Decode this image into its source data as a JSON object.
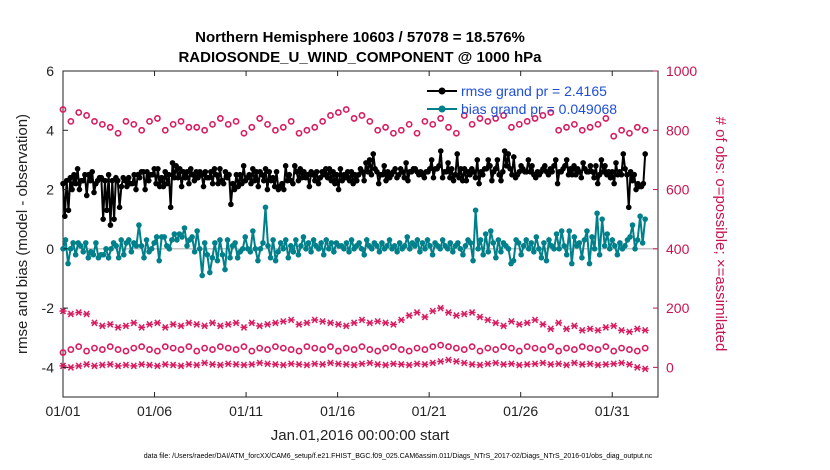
{
  "chart_data": {
    "type": "line",
    "title": "Northern Hemisphere 10603 / 57078 = 18.576%",
    "subtitle": "RADIOSONDE_U_WIND_COMPONENT @ 1000 hPa",
    "xlabel": "Jan.01,2016 00:00:00 start",
    "ylabel": "rmse and bias (model - observation)",
    "y2label": "# of obs: o=possible; ×=assimilated",
    "footer": "data file: /Users/raeder/DAI/ATM_forcXX/CAM6_setup/f.e21.FHIST_BGC.f09_025.CAM6assim.011/Diags_NTrS_2017-02/Diags_NTrS_2016-01/obs_diag_output.nc",
    "xlim": [
      0,
      32.5
    ],
    "ylim": [
      -5,
      6
    ],
    "y2lim": [
      -100,
      1000
    ],
    "xticks": [
      0,
      5,
      10,
      15,
      20,
      25,
      30
    ],
    "xticklabels": [
      "01/01",
      "01/06",
      "01/11",
      "01/16",
      "01/21",
      "01/26",
      "01/31"
    ],
    "yticks": [
      -4,
      -2,
      0,
      2,
      4,
      6
    ],
    "yticklabels": [
      "-4",
      "-2",
      "0",
      "2",
      "4",
      "6"
    ],
    "y2ticks": [
      0,
      200,
      400,
      600,
      800,
      1000
    ],
    "y2ticklabels": [
      "0",
      "200",
      "400",
      "600",
      "800",
      "1000"
    ],
    "colors": {
      "rmse": "#000000",
      "bias": "#00808a",
      "obs": "#d81b60",
      "zero": "#b0b0b0"
    },
    "legend": [
      {
        "name": "rmse grand pr = 2.4165",
        "series": "rmse"
      },
      {
        "name": "bias grand pr = 0.049068",
        "series": "bias"
      }
    ],
    "series": [
      {
        "name": "rmse",
        "axis": "left",
        "values": [
          2.2,
          1.1,
          2.3,
          1.3,
          2.4,
          2.0,
          2.5,
          2.2,
          2.7,
          2.0,
          2.3,
          2.3,
          2.5,
          1.8,
          2.5,
          2.3,
          2.6,
          1.9,
          2.2,
          2.3,
          2.4,
          2.4,
          1.0,
          2.3,
          1.3,
          2.5,
          0.8,
          2.3,
          1.0,
          2.4,
          2.3,
          1.4,
          2.1,
          2.4,
          2.3,
          2.1,
          2.4,
          2.2,
          2.2,
          2.5,
          2.0,
          2.5,
          2.4,
          2.6,
          2.6,
          2.0,
          2.6,
          2.3,
          2.5,
          2.5,
          2.7,
          2.2,
          2.7,
          2.1,
          2.4,
          2.1,
          2.6,
          2.2,
          2.5,
          1.4,
          2.9,
          2.4,
          2.8,
          2.4,
          2.7,
          2.1,
          2.6,
          2.4,
          2.6,
          2.2,
          2.7,
          2.5,
          2.3,
          2.6,
          2.4,
          2.6,
          2.5,
          2.1,
          2.6,
          2.4,
          2.4,
          2.6,
          2.2,
          2.7,
          2.5,
          2.2,
          2.7,
          2.3,
          2.2,
          2.6,
          2.4,
          2.5,
          1.5,
          2.2,
          2.0,
          2.5,
          2.1,
          2.5,
          2.2,
          2.8,
          2.3,
          2.4,
          2.5,
          2.2,
          2.7,
          2.3,
          2.6,
          2.1,
          2.6,
          2.5,
          2.3,
          2.7,
          2.0,
          2.6,
          2.3,
          2.4,
          2.1,
          2.6,
          2.0,
          2.1,
          2.2,
          2.0,
          2.8,
          2.3,
          2.5,
          2.3,
          2.2,
          2.8,
          2.6,
          2.3,
          2.7,
          2.4,
          2.6,
          2.4,
          2.5,
          2.1,
          2.6,
          2.5,
          2.3,
          2.6,
          2.2,
          2.4,
          2.6,
          2.5,
          2.7,
          2.4,
          2.7,
          2.3,
          2.6,
          2.2,
          2.5,
          2.0,
          2.7,
          2.3,
          2.5,
          2.4,
          2.6,
          2.3,
          2.6,
          2.2,
          2.5,
          2.3,
          2.5,
          2.7,
          2.6,
          2.3,
          2.9,
          2.6,
          3.0,
          2.5,
          3.2,
          2.7,
          2.6,
          2.2,
          2.5,
          2.5,
          2.8,
          2.3,
          2.6,
          2.4,
          2.5,
          2.6,
          2.7,
          2.4,
          2.5,
          2.7,
          2.6,
          2.4,
          2.9,
          2.3,
          2.6,
          2.6,
          2.7,
          2.7,
          2.6,
          2.5,
          2.6,
          2.5,
          2.4,
          2.6,
          2.6,
          2.7,
          3.0,
          2.4,
          2.7,
          2.7,
          2.8,
          3.3,
          2.4,
          2.6,
          2.6,
          2.9,
          2.4,
          2.7,
          2.3,
          2.5,
          3.2,
          2.4,
          2.7,
          2.3,
          2.7,
          2.3,
          2.6,
          2.5,
          2.7,
          2.6,
          2.4,
          3.0,
          2.2,
          2.6,
          2.5,
          2.7,
          2.7,
          3.0,
          2.8,
          2.3,
          2.6,
          2.7,
          3.0,
          2.5,
          2.3,
          2.6,
          3.3,
          2.8,
          3.2,
          2.7,
          2.5,
          3.1,
          2.4,
          2.5,
          2.6,
          2.8,
          2.7,
          2.6,
          2.6,
          3.0,
          2.6,
          2.8,
          2.5,
          2.4,
          2.6,
          2.5,
          2.6,
          2.7,
          2.8,
          2.6,
          2.5,
          2.7,
          2.6,
          2.8,
          3.0,
          2.2,
          2.6,
          2.6,
          2.7,
          2.8,
          3.0,
          2.5,
          2.7,
          2.5,
          2.8,
          2.5,
          2.7,
          2.6,
          2.4,
          2.9,
          2.7,
          2.6,
          2.6,
          2.8,
          2.6,
          2.4,
          2.8,
          2.2,
          2.5,
          3.0,
          2.6,
          2.8,
          2.5,
          2.6,
          2.4,
          2.6,
          2.2,
          2.9,
          2.5,
          2.6,
          2.5,
          3.2,
          2.7,
          2.5,
          1.4,
          2.6,
          2.3,
          2.5,
          2.0,
          2.2,
          2.1,
          2.1,
          2.2,
          3.2
        ]
      },
      {
        "name": "bias",
        "axis": "left",
        "values": [
          0.0,
          0.3,
          -0.5,
          0.0,
          0.2,
          -0.2,
          0.2,
          0.1,
          -0.1,
          0.2,
          -0.3,
          -0.1,
          -0.2,
          0.2,
          -0.3,
          -0.2,
          -0.2,
          0.0,
          -0.3,
          0.0,
          0.2,
          0.1,
          -0.3,
          0.3,
          -0.2,
          0.2,
          0.3,
          -0.1,
          0.2,
          0.1,
          0.8,
          0.1,
          -0.3,
          0.3,
          -0.1,
          0.0,
          0.2,
          0.4,
          -0.4,
          0.4,
          0.4,
          0.1,
          0.0,
          0.3,
          0.5,
          0.3,
          0.5,
          0.4,
          0.7,
          0.1,
          0.3,
          0.4,
          -0.1,
          0.6,
          0.0,
          -0.9,
          0.2,
          -0.2,
          -0.8,
          -0.3,
          0.2,
          -0.4,
          0.3,
          -0.2,
          -0.7,
          0.3,
          -0.3,
          0.1,
          0.2,
          -0.3,
          -0.1,
          0.0,
          0.4,
          0.0,
          -0.1,
          0.6,
          0.0,
          -0.4,
          0.0,
          0.2,
          1.4,
          0.1,
          -0.3,
          0.3,
          -0.4,
          -0.1,
          0.2,
          0.0,
          0.3,
          -0.3,
          0.1,
          -0.1,
          0.3,
          -0.2,
          0.1,
          0.4,
          0.0,
          0.2,
          -0.1,
          0.3,
          0.1,
          0.0,
          0.2,
          -0.2,
          0.3,
          0.0,
          0.2,
          -0.1,
          0.2,
          0.1,
          0.1,
          0.0,
          0.2,
          -0.1,
          0.3,
          0.0,
          0.1,
          0.2,
          0.0,
          -0.2,
          0.3,
          0.1,
          0.0,
          0.2,
          0.1,
          -0.1,
          0.2,
          0.0,
          0.1,
          0.3,
          0.0,
          0.1,
          -0.1,
          0.2,
          0.0,
          0.1,
          0.4,
          0.0,
          0.2,
          0.1,
          0.3,
          -0.1,
          0.2,
          0.0,
          0.3,
          0.1,
          -0.2,
          0.2,
          0.1,
          0.0,
          0.3,
          0.1,
          0.0,
          0.2,
          -0.1,
          0.1,
          0.2,
          0.0,
          -0.2,
          0.1,
          0.3,
          0.2,
          -0.4,
          1.3,
          0.0,
          0.3,
          -0.2,
          0.5,
          -0.1,
          0.6,
          0.2,
          -0.3,
          0.3,
          -0.1,
          0.2,
          0.1,
          0.0,
          -0.5,
          -0.4,
          0.3,
          0.2,
          -0.2,
          0.1,
          0.3,
          0.0,
          0.2,
          -0.1,
          0.4,
          0.0,
          -0.3,
          0.2,
          -0.4,
          0.3,
          0.1,
          0.0,
          0.5,
          0.0,
          0.6,
          0.1,
          -0.2,
          0.6,
          -0.5,
          0.4,
          0.1,
          0.2,
          -0.3,
          0.3,
          0.6,
          -0.5,
          0.4,
          0.0,
          1.2,
          -0.2,
          1.0,
          0.1,
          0.5,
          0.0,
          0.3,
          0.1,
          -0.2,
          0.2,
          0.0,
          0.1,
          0.3,
          0.4,
          0.8,
          0.0,
          0.3,
          1.1,
          0.2,
          1.0
        ]
      },
      {
        "name": "obs possible",
        "axis": "right",
        "marker": "circle",
        "values": [
          870,
          830,
          860,
          850,
          830,
          820,
          810,
          790,
          830,
          820,
          800,
          830,
          840,
          800,
          820,
          830,
          810,
          810,
          800,
          820,
          840,
          820,
          830,
          790,
          810,
          840,
          820,
          800,
          810,
          830,
          790,
          800,
          810,
          830,
          850,
          860,
          870,
          840,
          850,
          830,
          800,
          810,
          790,
          800,
          820,
          790,
          830,
          820,
          840,
          810,
          790,
          850,
          820,
          840,
          830,
          840,
          850,
          810,
          820,
          830,
          840,
          850,
          860,
          800,
          810,
          820,
          800,
          810,
          820,
          840,
          780,
          800,
          790,
          810,
          800
        ]
      },
      {
        "name": "obs assimilated high",
        "axis": "right",
        "marker": "asterisk",
        "values": [
          190,
          180,
          185,
          180,
          150,
          140,
          145,
          135,
          140,
          150,
          135,
          145,
          150,
          135,
          145,
          140,
          150,
          145,
          140,
          150,
          140,
          145,
          150,
          135,
          150,
          140,
          145,
          150,
          155,
          160,
          145,
          150,
          160,
          155,
          150,
          145,
          140,
          150,
          160,
          150,
          155,
          150,
          145,
          160,
          175,
          185,
          170,
          190,
          200,
          185,
          175,
          180,
          185,
          170,
          160,
          150,
          140,
          155,
          145,
          150,
          160,
          145,
          130,
          150,
          130,
          140,
          125,
          130,
          125,
          135,
          140,
          125,
          120,
          130,
          125
        ]
      },
      {
        "name": "obs possible low",
        "axis": "right",
        "marker": "circle",
        "values": [
          50,
          60,
          70,
          55,
          65,
          60,
          70,
          60,
          55,
          65,
          70,
          60,
          55,
          70,
          65,
          60,
          70,
          55,
          65,
          60,
          70,
          65,
          60,
          70,
          55,
          65,
          60,
          70,
          65,
          60,
          55,
          70,
          65,
          60,
          70,
          55,
          65,
          60,
          70,
          60,
          55,
          65,
          70,
          60,
          55,
          65,
          60,
          70,
          75,
          70,
          65,
          60,
          70,
          55,
          65,
          60,
          70,
          65,
          55,
          70,
          65,
          60,
          70,
          55,
          65,
          60,
          70,
          65,
          60,
          70,
          55,
          65,
          60,
          55,
          65
        ]
      },
      {
        "name": "obs assimilated low",
        "axis": "right",
        "marker": "asterisk",
        "values": [
          5,
          0,
          5,
          10,
          5,
          8,
          10,
          5,
          8,
          5,
          10,
          8,
          5,
          10,
          8,
          5,
          10,
          8,
          15,
          10,
          8,
          12,
          10,
          8,
          10,
          15,
          12,
          10,
          8,
          12,
          10,
          8,
          12,
          10,
          15,
          12,
          10,
          8,
          12,
          15,
          10,
          8,
          12,
          10,
          8,
          12,
          10,
          15,
          20,
          25,
          20,
          15,
          10,
          8,
          12,
          15,
          10,
          12,
          8,
          10,
          12,
          15,
          10,
          12,
          8,
          15,
          10,
          12,
          8,
          10,
          12,
          15,
          10,
          0,
          -5
        ]
      }
    ]
  }
}
